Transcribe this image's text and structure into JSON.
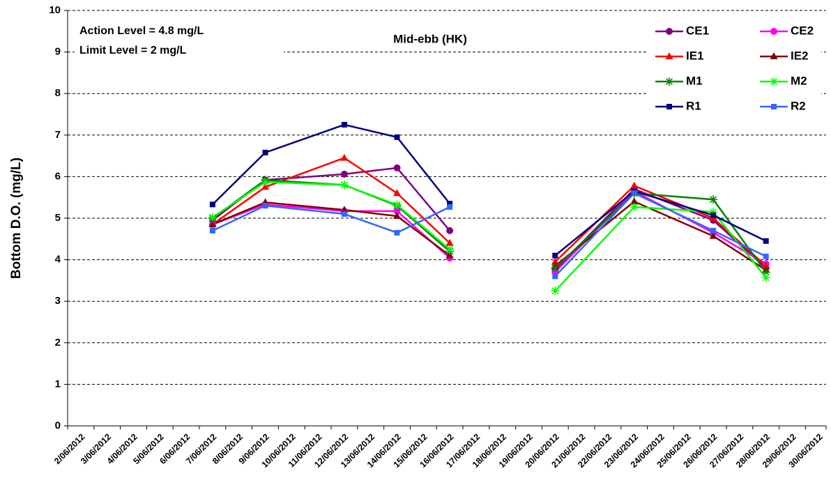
{
  "chart_data": {
    "type": "line",
    "title": "Mid-ebb (HK)",
    "annotations": [
      "Action Level = 4.8 mg/L",
      "Limit Level = 2 mg/L"
    ],
    "y_label": "Bottom D.O. (mg/L)",
    "categories": [
      "2/06/2012",
      "3/06/2012",
      "4/06/2012",
      "5/06/2012",
      "6/06/2012",
      "7/06/2012",
      "8/06/2012",
      "9/06/2012",
      "10/06/2012",
      "11/06/2012",
      "12/06/2012",
      "13/06/2012",
      "14/06/2012",
      "15/06/2012",
      "16/06/2012",
      "17/06/2012",
      "18/06/2012",
      "19/06/2012",
      "20/06/2012",
      "21/06/2012",
      "22/06/2012",
      "23/06/2012",
      "24/06/2012",
      "25/06/2012",
      "26/06/2012",
      "27/06/2012",
      "28/06/2012",
      "29/06/2012",
      "30/06/2012"
    ],
    "x": [
      "7/06/2012",
      "9/06/2012",
      "12/06/2012",
      "14/06/2012",
      "16/06/2012",
      "18/06/2012",
      "20/06/2012",
      "23/06/2012",
      "26/06/2012",
      "28/06/2012"
    ],
    "series": [
      {
        "name": "CE1",
        "color": "#800080",
        "marker": "circle",
        "values": [
          4.95,
          5.92,
          6.06,
          6.21,
          4.7,
          null,
          3.75,
          5.7,
          4.95,
          3.8
        ]
      },
      {
        "name": "CE2",
        "color": "#ff00ff",
        "marker": "circle",
        "values": [
          4.85,
          5.33,
          5.17,
          5.17,
          4.04,
          null,
          3.7,
          5.65,
          4.65,
          3.9
        ]
      },
      {
        "name": "IE1",
        "color": "#ff0000",
        "marker": "triangle",
        "values": [
          4.85,
          5.75,
          6.45,
          5.6,
          4.4,
          null,
          3.95,
          5.78,
          5.0,
          3.85
        ]
      },
      {
        "name": "IE2",
        "color": "#800000",
        "marker": "triangle",
        "values": [
          4.85,
          5.38,
          5.2,
          5.05,
          4.1,
          null,
          3.85,
          5.4,
          4.57,
          3.75
        ]
      },
      {
        "name": "M1",
        "color": "#008000",
        "marker": "star",
        "values": [
          5.0,
          5.92,
          5.8,
          5.3,
          4.2,
          null,
          3.8,
          5.6,
          5.45,
          3.7
        ]
      },
      {
        "name": "M2",
        "color": "#00ff00",
        "marker": "star",
        "values": [
          5.02,
          5.87,
          5.8,
          5.32,
          4.25,
          null,
          3.25,
          5.27,
          5.15,
          3.57
        ]
      },
      {
        "name": "R1",
        "color": "#000080",
        "marker": "square",
        "values": [
          5.33,
          6.58,
          7.25,
          6.95,
          5.35,
          null,
          4.1,
          5.65,
          5.07,
          4.45
        ]
      },
      {
        "name": "R2",
        "color": "#3366ff",
        "marker": "square",
        "values": [
          4.7,
          5.3,
          5.1,
          4.65,
          5.27,
          null,
          3.6,
          5.6,
          4.7,
          4.08
        ]
      }
    ],
    "ylim": [
      0,
      10
    ],
    "yticks": [
      0,
      1,
      2,
      3,
      4,
      5,
      6,
      7,
      8,
      9,
      10
    ],
    "grid": true,
    "legend": "top-right"
  }
}
